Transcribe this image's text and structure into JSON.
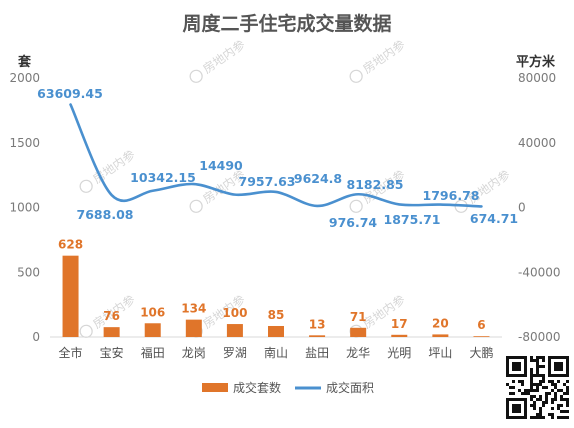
{
  "colors": {
    "bar": "#e0752a",
    "line": "#4a90cf",
    "grid": "#d9d9d9",
    "text": "#555555"
  },
  "watermark": "房地内参",
  "legend_position": "bottom",
  "chart_data": {
    "type": "bar",
    "title": "周度二手住宅成交量数据",
    "categories": [
      "全市",
      "宝安",
      "福田",
      "龙岗",
      "罗湖",
      "南山",
      "盐田",
      "龙华",
      "光明",
      "坪山",
      "大鹏"
    ],
    "y_left": {
      "label": "套",
      "lim": [
        0,
        2000
      ],
      "ticks": [
        "0",
        "500",
        "1000",
        "1500",
        "2000"
      ]
    },
    "y_right": {
      "label": "平方米",
      "lim": [
        -80000,
        80000
      ],
      "ticks": [
        "-80000",
        "-40000",
        "0",
        "40000",
        "80000"
      ]
    },
    "grid": false,
    "series": [
      {
        "name": "成交套数",
        "type": "bar",
        "axis": "left",
        "values": [
          628,
          76,
          106,
          134,
          100,
          85,
          13,
          71,
          17,
          20,
          6
        ],
        "labels": [
          "628",
          "76",
          "106",
          "134",
          "100",
          "85",
          "13",
          "71",
          "17",
          "20",
          "6"
        ]
      },
      {
        "name": "成交面积",
        "type": "line",
        "axis": "right",
        "smooth": true,
        "values": [
          63609.45,
          7688.08,
          10342.15,
          14490,
          7957.63,
          9624.8,
          976.74,
          8182.85,
          1875.71,
          1796.78,
          674.71
        ],
        "labels": [
          "63609.45",
          "7688.08",
          "10342.15",
          "14490",
          "7957.63",
          "9624.8",
          "976.74",
          "8182.85",
          "1875.71",
          "1796.78",
          "674.71"
        ]
      }
    ]
  }
}
